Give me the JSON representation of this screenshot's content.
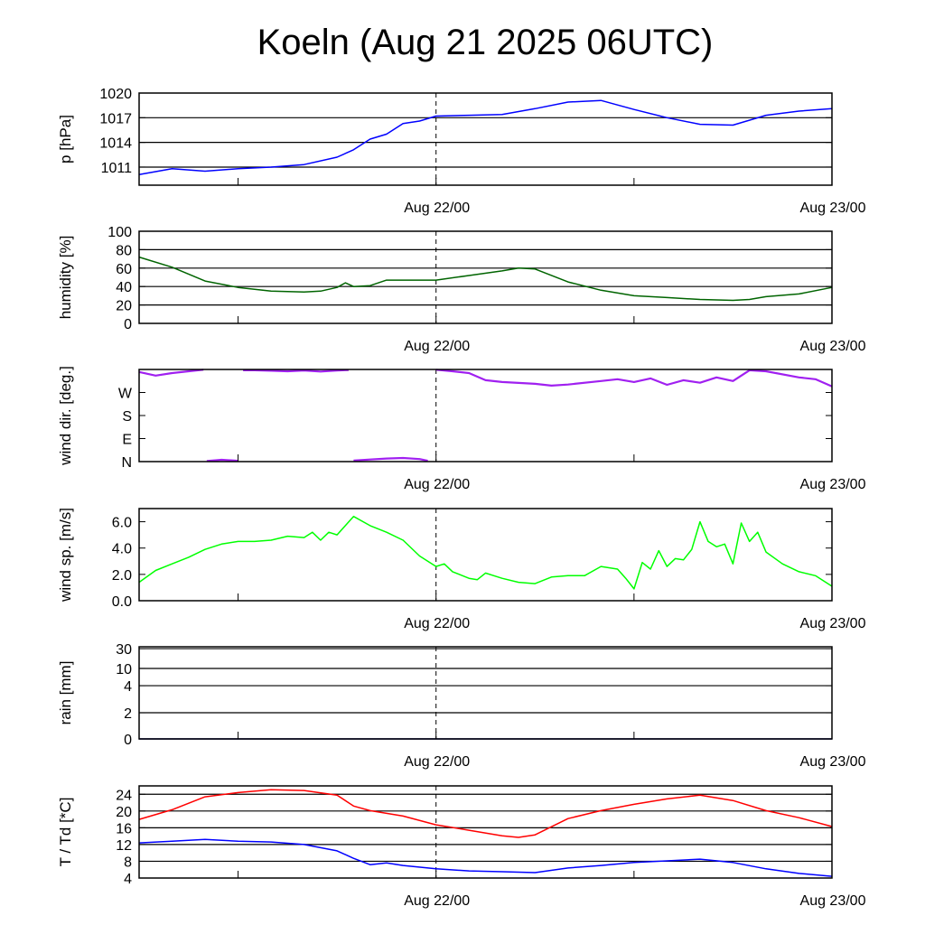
{
  "title": "Koeln (Aug 21 2025 06UTC)",
  "x_labels": [
    "Aug 22/00",
    "Aug 23/00"
  ],
  "x_label_hours": [
    18,
    42
  ],
  "x_range_hours": [
    0,
    42
  ],
  "x_minor_tick_hours": [
    6,
    18,
    30
  ],
  "chart_data": [
    {
      "type": "line",
      "key": "pressure",
      "ylabel": "p [hPa]",
      "ylim": [
        1008.8,
        1020
      ],
      "ticks": [
        1011,
        1014,
        1017,
        1020
      ],
      "tick_labels": [
        "1011",
        "1014",
        "1017",
        "1020"
      ],
      "grid": [
        1011,
        1014,
        1017
      ],
      "series": [
        {
          "name": "pressure",
          "color": "#0000ff",
          "x": [
            0,
            2,
            4,
            6,
            8,
            10,
            12,
            13,
            14,
            15,
            16,
            17,
            18,
            20,
            22,
            24,
            26,
            28,
            30,
            32,
            34,
            36,
            38,
            40,
            42
          ],
          "y": [
            1010.1,
            1010.8,
            1010.5,
            1010.8,
            1011.0,
            1011.3,
            1012.2,
            1013.1,
            1014.4,
            1015.0,
            1016.3,
            1016.6,
            1017.2,
            1017.3,
            1017.4,
            1018.1,
            1018.9,
            1019.1,
            1018.0,
            1017.0,
            1016.2,
            1016.1,
            1017.3,
            1017.8,
            1018.1
          ]
        }
      ]
    },
    {
      "type": "line",
      "key": "humidity",
      "ylabel": "humidity [%]",
      "ylim": [
        0,
        100
      ],
      "ticks": [
        0,
        20,
        40,
        60,
        80,
        100
      ],
      "tick_labels": [
        "0",
        "20",
        "40",
        "60",
        "80",
        "100"
      ],
      "grid": [
        20,
        40,
        60,
        80
      ],
      "series": [
        {
          "name": "humidity",
          "color": "#006400",
          "x": [
            0,
            2,
            4,
            6,
            8,
            10,
            11,
            12,
            12.5,
            13,
            14,
            15,
            16,
            18,
            20,
            22,
            23,
            24,
            26,
            28,
            30,
            32,
            34,
            36,
            37,
            38,
            40,
            42
          ],
          "y": [
            72,
            61,
            46,
            39,
            35,
            34,
            35,
            39,
            44,
            40,
            41,
            47,
            47,
            47,
            52,
            57,
            60,
            59,
            45,
            36,
            30,
            28,
            26,
            25,
            26,
            29,
            32,
            39
          ]
        }
      ]
    },
    {
      "type": "line",
      "key": "wind_dir",
      "ylabel": "wind dir. [deg.]",
      "ylim": [
        0,
        360
      ],
      "wrap": true,
      "ticks": [
        0,
        90,
        180,
        270,
        360
      ],
      "tick_labels": [
        "N",
        "E",
        "S",
        "W",
        ""
      ],
      "grid": [],
      "series": [
        {
          "name": "wind direction",
          "color": "#a020f0",
          "x": [
            0,
            1,
            2,
            3,
            3.9,
            4.1,
            5,
            6,
            6.3,
            7,
            8,
            9,
            10,
            11,
            12,
            12.7,
            13,
            14,
            15,
            16,
            17,
            17.5,
            18,
            19,
            20,
            21,
            22,
            24,
            25,
            26,
            28,
            29,
            30,
            31,
            32,
            33,
            34,
            35,
            36,
            37,
            38,
            40,
            41,
            42
          ],
          "y": [
            350,
            336,
            346,
            353,
            359,
            2,
            7,
            3,
            357,
            357,
            355,
            353,
            356,
            352,
            356,
            358,
            4,
            8,
            12,
            14,
            10,
            3,
            359,
            353,
            346,
            318,
            311,
            304,
            297,
            301,
            315,
            322,
            311,
            325,
            300,
            318,
            308,
            329,
            315,
            357,
            353,
            329,
            322,
            294
          ]
        }
      ]
    },
    {
      "type": "line",
      "key": "wind_speed",
      "ylabel": "wind sp. [m/s]",
      "ylim": [
        0,
        7.0
      ],
      "ticks": [
        0,
        2,
        4,
        6
      ],
      "tick_labels": [
        "0.0",
        "2.0",
        "4.0",
        "6.0"
      ],
      "grid": [],
      "series": [
        {
          "name": "wind speed",
          "color": "#00ff00",
          "x": [
            0,
            1,
            2,
            3,
            4,
            5,
            6,
            7,
            8,
            9,
            10,
            10.5,
            11,
            11.5,
            12,
            12.5,
            13,
            14,
            15,
            16,
            17,
            18,
            18.5,
            19,
            20,
            20.5,
            21,
            22,
            23,
            24,
            25,
            26,
            27,
            28,
            29,
            29.5,
            30,
            30.5,
            31,
            31.5,
            32,
            32.5,
            33,
            33.5,
            34,
            34.5,
            35,
            35.5,
            36,
            36.5,
            37,
            37.5,
            38,
            39,
            40,
            41,
            42
          ],
          "y": [
            1.4,
            2.3,
            2.8,
            3.3,
            3.9,
            4.3,
            4.5,
            4.5,
            4.6,
            4.9,
            4.8,
            5.2,
            4.6,
            5.2,
            5.0,
            5.7,
            6.4,
            5.7,
            5.2,
            4.6,
            3.4,
            2.6,
            2.8,
            2.2,
            1.7,
            1.6,
            2.1,
            1.7,
            1.4,
            1.3,
            1.8,
            1.9,
            1.9,
            2.6,
            2.4,
            1.7,
            0.9,
            2.9,
            2.4,
            3.8,
            2.6,
            3.2,
            3.1,
            3.9,
            6.0,
            4.5,
            4.1,
            4.3,
            2.8,
            5.9,
            4.5,
            5.2,
            3.7,
            2.8,
            2.2,
            1.9,
            1.1
          ]
        }
      ]
    },
    {
      "type": "line",
      "key": "rain",
      "ylabel": "rain [mm]",
      "ylim": [
        0,
        30
      ],
      "scale": "nonlinear",
      "ticks": [
        0,
        2,
        4,
        10,
        30
      ],
      "tick_labels": [
        "0",
        "2",
        "4",
        "10",
        "30"
      ],
      "grid": [
        2,
        4,
        10,
        30
      ],
      "series": [
        {
          "name": "rain",
          "color": "#00008b",
          "x": [
            0,
            42
          ],
          "y": [
            0,
            0
          ]
        }
      ]
    },
    {
      "type": "line",
      "key": "temperature",
      "ylabel": "T / Td [*C]",
      "ylim": [
        4,
        26
      ],
      "ticks": [
        4,
        8,
        12,
        16,
        20,
        24
      ],
      "tick_labels": [
        "4",
        "8",
        "12",
        "16",
        "20",
        "24"
      ],
      "grid": [
        8,
        12,
        16,
        20,
        24
      ],
      "series": [
        {
          "name": "T",
          "color": "#ff0000",
          "x": [
            0,
            2,
            4,
            6,
            8,
            10,
            12,
            13,
            14,
            16,
            18,
            20,
            22,
            23,
            24,
            26,
            28,
            30,
            32,
            34,
            36,
            38,
            40,
            42
          ],
          "y": [
            18.0,
            20.3,
            23.4,
            24.4,
            25.1,
            24.9,
            23.8,
            21.2,
            20.1,
            18.8,
            16.7,
            15.4,
            14.1,
            13.7,
            14.3,
            18.2,
            20.1,
            21.6,
            22.9,
            23.8,
            22.5,
            20.1,
            18.4,
            16.3
          ]
        },
        {
          "name": "Td",
          "color": "#0000ff",
          "x": [
            0,
            2,
            4,
            6,
            8,
            10,
            12,
            13,
            14,
            15,
            16,
            18,
            20,
            22,
            24,
            26,
            28,
            30,
            32,
            34,
            36,
            38,
            40,
            42
          ],
          "y": [
            12.4,
            12.8,
            13.2,
            12.8,
            12.6,
            12.0,
            10.5,
            8.7,
            7.2,
            7.6,
            7.0,
            6.2,
            5.7,
            5.5,
            5.3,
            6.4,
            7.0,
            7.7,
            8.1,
            8.5,
            7.7,
            6.2,
            5.1,
            4.4
          ]
        }
      ]
    }
  ]
}
